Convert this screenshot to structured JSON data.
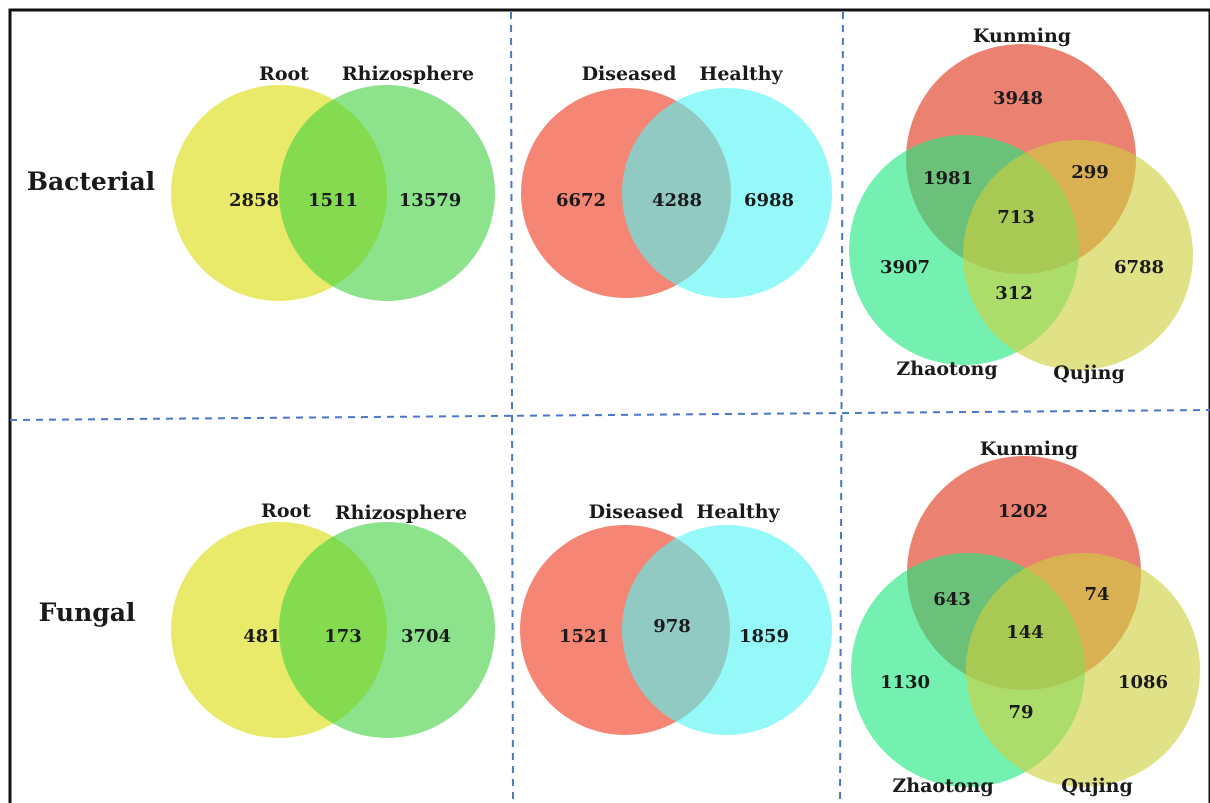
{
  "rows": [
    {
      "label": "Bacterial",
      "root_rhizosphere": {
        "sets": [
          "Root",
          "Rhizosphere"
        ],
        "counts": {
          "root_only": "2858",
          "shared": "1511",
          "rhizosphere_only": "13579"
        }
      },
      "disease_health": {
        "sets": [
          "Diseased",
          "Healthy"
        ],
        "counts": {
          "diseased_only": "6672",
          "shared": "4288",
          "healthy_only": "6988"
        }
      },
      "locations": {
        "sets": [
          "Kunming",
          "Zhaotong",
          "Qujing"
        ],
        "counts": {
          "kunming_only": "3948",
          "kunming_zhaotong": "1981",
          "kunming_qujing": "299",
          "all_three": "713",
          "zhaotong_only": "3907",
          "zhaotong_qujing": "312",
          "qujing_only": "6788"
        }
      }
    },
    {
      "label": "Fungal",
      "root_rhizosphere": {
        "sets": [
          "Root",
          "Rhizosphere"
        ],
        "counts": {
          "root_only": "481",
          "shared": "173",
          "rhizosphere_only": "3704"
        }
      },
      "disease_health": {
        "sets": [
          "Diseased",
          "Healthy"
        ],
        "counts": {
          "diseased_only": "1521",
          "shared": "978",
          "healthy_only": "1859"
        }
      },
      "locations": {
        "sets": [
          "Kunming",
          "Zhaotong",
          "Qujing"
        ],
        "counts": {
          "kunming_only": "1202",
          "kunming_zhaotong": "643",
          "kunming_qujing": "74",
          "all_three": "144",
          "zhaotong_only": "1130",
          "zhaotong_qujing": "79",
          "qujing_only": "1086"
        }
      }
    }
  ],
  "colors": {
    "root": "#e6e650",
    "rhizosphere": "#3fd03f",
    "diseased": "#f47866",
    "healthy": "#52f6f4",
    "kunming": "#e2503a",
    "zhaotong": "#1fe880",
    "qujing": "#cfcf3f",
    "divider": "#4a78c8",
    "border": "#111111"
  }
}
